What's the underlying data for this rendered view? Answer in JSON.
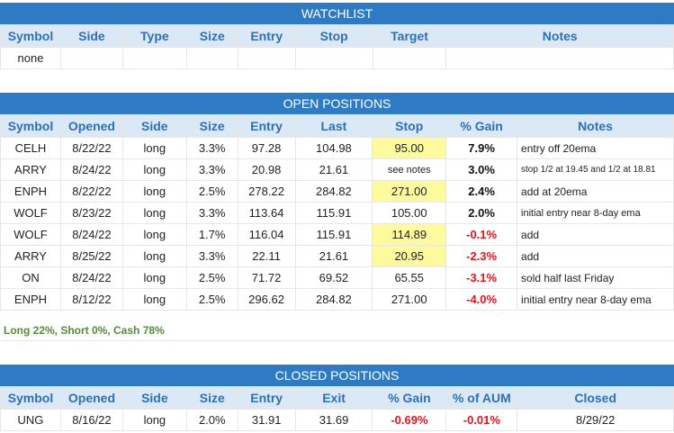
{
  "watchlist": {
    "title": "WATCHLIST",
    "headers": [
      "Symbol",
      "Side",
      "Type",
      "Size",
      "Entry",
      "Stop",
      "Target",
      "Notes"
    ],
    "row": [
      "none",
      "",
      "",
      "",
      "",
      "",
      "",
      ""
    ]
  },
  "open": {
    "title": "OPEN POSITIONS",
    "headers": [
      "Symbol",
      "Opened",
      "Side",
      "Size",
      "Entry",
      "Last",
      "Stop",
      "% Gain",
      "Notes"
    ],
    "rows": [
      [
        "CELH",
        "8/22/22",
        "long",
        "3.3%",
        "97.28",
        "104.98",
        "95.00",
        "7.9%",
        "entry off 20ema"
      ],
      [
        "ARRY",
        "8/24/22",
        "long",
        "3.3%",
        "20.98",
        "21.61",
        "see notes",
        "3.0%",
        "stop 1/2 at 19.45 and 1/2 at 18.81"
      ],
      [
        "ENPH",
        "8/22/22",
        "long",
        "2.5%",
        "278.22",
        "284.82",
        "271.00",
        "2.4%",
        "add at 20ema"
      ],
      [
        "WOLF",
        "8/23/22",
        "long",
        "3.3%",
        "113.64",
        "115.91",
        "105.00",
        "2.0%",
        "initial entry near 8-day ema"
      ],
      [
        "WOLF",
        "8/24/22",
        "long",
        "1.7%",
        "116.04",
        "115.91",
        "114.89",
        "-0.1%",
        "add"
      ],
      [
        "ARRY",
        "8/25/22",
        "long",
        "3.3%",
        "22.11",
        "21.61",
        "20.95",
        "-2.3%",
        "add"
      ],
      [
        "ON",
        "8/24/22",
        "long",
        "2.5%",
        "71.72",
        "69.52",
        "65.55",
        "-3.1%",
        "sold half last Friday"
      ],
      [
        "ENPH",
        "8/12/22",
        "long",
        "2.5%",
        "296.62",
        "284.82",
        "271.00",
        "-4.0%",
        "initial entry near 8-day ema"
      ]
    ],
    "summary": "Long 22%, Short 0%, Cash 78%"
  },
  "closed": {
    "title": "CLOSED POSITIONS",
    "headers": [
      "Symbol",
      "Opened",
      "Side",
      "Size",
      "Entry",
      "Exit",
      "% Gain",
      "% of AUM",
      "Closed"
    ],
    "rows": [
      [
        "UNG",
        "8/16/22",
        "long",
        "2.0%",
        "31.91",
        "31.69",
        "-0.69%",
        "-0.01%",
        "8/29/22"
      ]
    ]
  },
  "colors": {
    "banner": "#2e7bc4",
    "header_bg": "#dbe8f6",
    "header_text": "#2e6fb5",
    "highlight": "#fdfa9e",
    "negative": "#e0141e",
    "summary_text": "#4e8e36"
  }
}
